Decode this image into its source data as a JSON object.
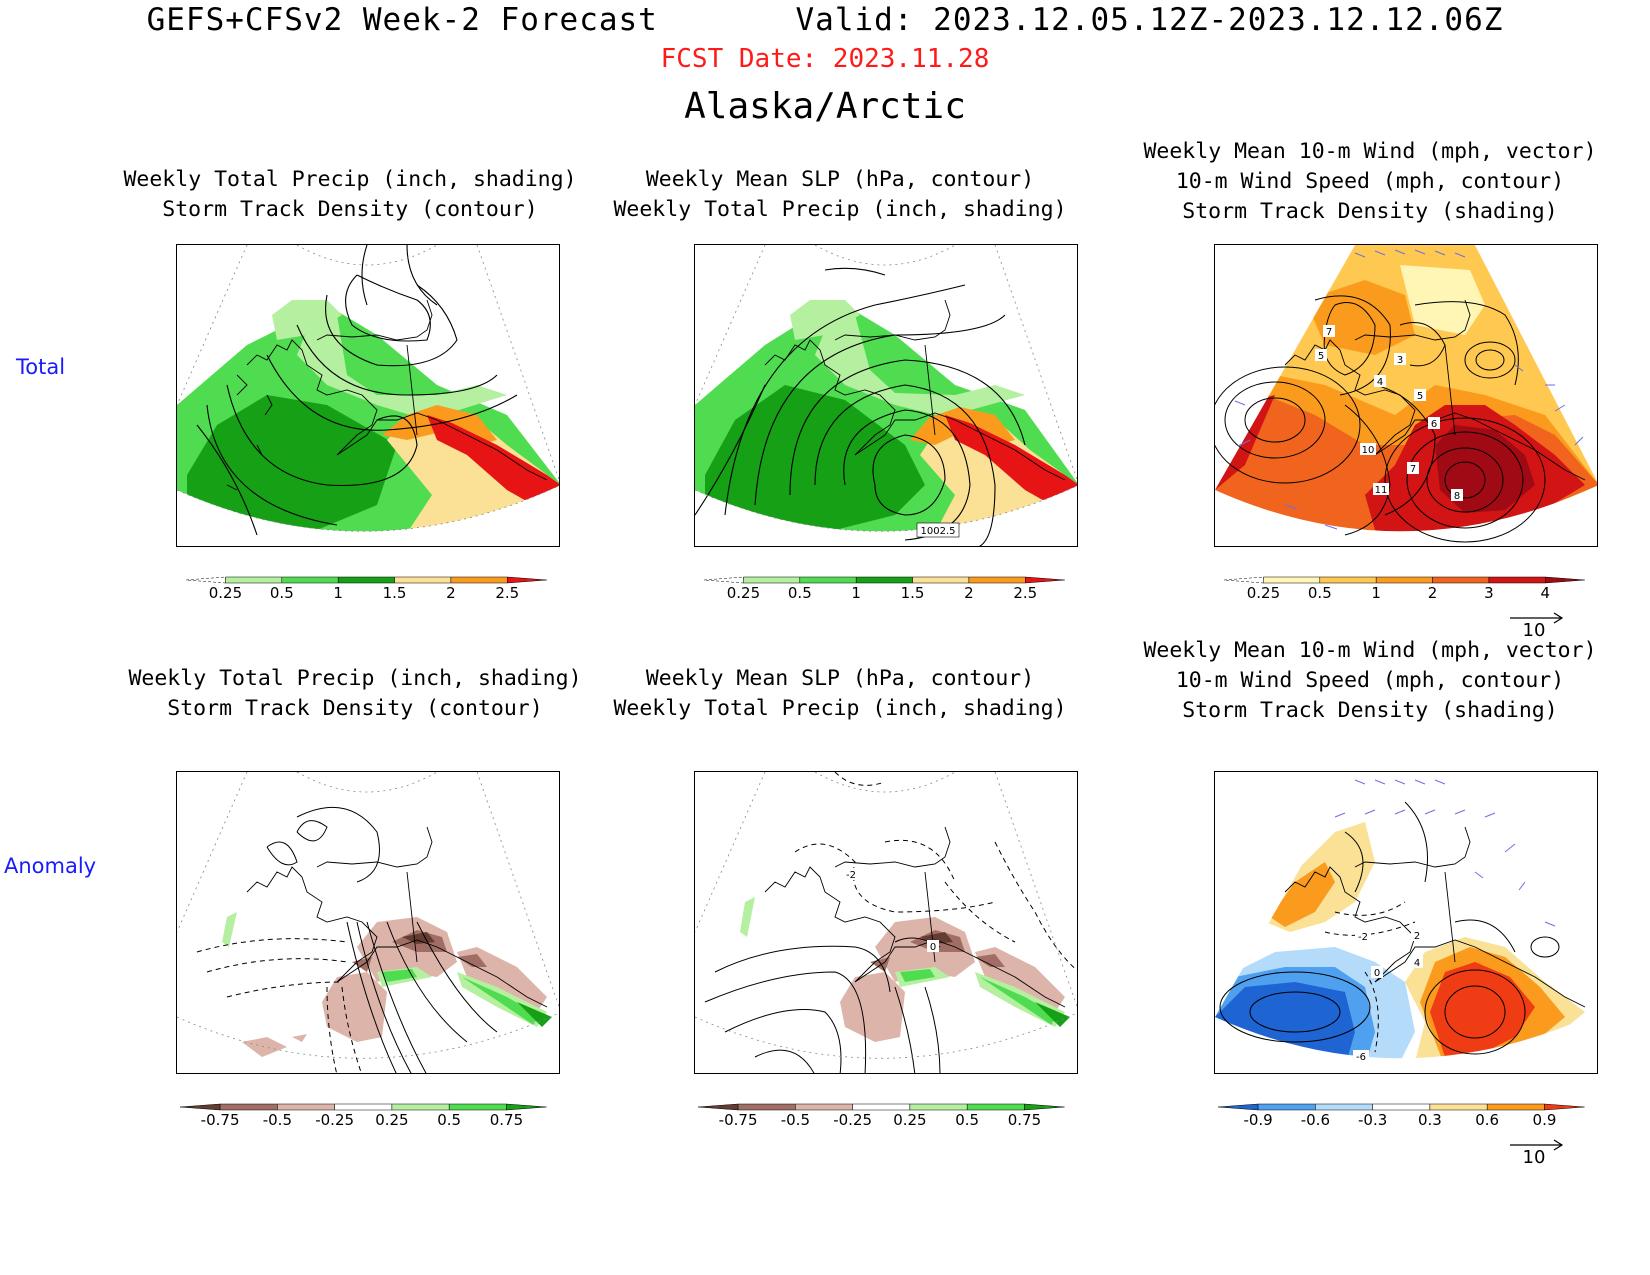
{
  "header": {
    "model": "GEFS+CFSv2 Week-2 Forecast",
    "valid": "Valid: 2023.12.05.12Z-2023.12.12.06Z",
    "fcst_date": "FCST Date: 2023.11.28",
    "region": "Alaska/Arctic"
  },
  "rows": {
    "total": "Total",
    "anomaly": "Anomaly"
  },
  "panels": [
    {
      "id": "total-precip",
      "title1": "Weekly Total Precip (inch, shading)",
      "title2": "Storm Track Density (contour)",
      "title3": ""
    },
    {
      "id": "total-slp",
      "title1": "Weekly Mean SLP (hPa, contour)",
      "title2": "Weekly Total Precip (inch, shading)",
      "title3": "",
      "contour_label": "1002.5"
    },
    {
      "id": "total-wind",
      "title1": "Weekly Mean 10-m Wind (mph, vector)",
      "title2": "10-m Wind Speed (mph, contour)",
      "title3": "Storm Track Density (shading)",
      "contour_labels": [
        "7",
        "5",
        "3",
        "4",
        "5",
        "6",
        "10",
        "7",
        "11",
        "8"
      ]
    },
    {
      "id": "anom-precip",
      "title1": "Weekly Total Precip (inch, shading)",
      "title2": "Storm Track Density (contour)",
      "title3": ""
    },
    {
      "id": "anom-slp",
      "title1": "Weekly Mean SLP (hPa, contour)",
      "title2": "Weekly Total Precip (inch, shading)",
      "title3": "",
      "contour_labels": [
        "-2",
        "0"
      ]
    },
    {
      "id": "anom-wind",
      "title1": "Weekly Mean 10-m Wind (mph, vector)",
      "title2": "10-m Wind Speed (mph, contour)",
      "title3": "Storm Track Density (shading)",
      "contour_labels": [
        "-2",
        "2",
        "0",
        "4",
        "-6"
      ]
    }
  ],
  "colorbars": {
    "precip_total": {
      "ticks": [
        "0.25",
        "0.5",
        "1",
        "1.5",
        "2",
        "2.5"
      ],
      "colors": [
        "#ffffff",
        "#b4f0a0",
        "#50dc50",
        "#16a016",
        "#fae196",
        "#fa9b1e",
        "#e61414"
      ]
    },
    "density_total": {
      "ticks": [
        "0.25",
        "0.5",
        "1",
        "2",
        "3",
        "4"
      ],
      "colors": [
        "#ffffff",
        "#fff5b4",
        "#ffc850",
        "#fa9b1e",
        "#f0641e",
        "#d21414",
        "#a00a14"
      ]
    },
    "precip_anom": {
      "ticks": [
        "-0.75",
        "-0.5",
        "-0.25",
        "0.25",
        "0.5",
        "0.75"
      ],
      "colors": [
        "#643c32",
        "#a06e64",
        "#dcb4aa",
        "#ffffff",
        "#b4f0a0",
        "#50dc50",
        "#16a016"
      ]
    },
    "density_anom": {
      "ticks": [
        "-0.9",
        "-0.6",
        "-0.3",
        "0.3",
        "0.6",
        "0.9"
      ],
      "colors": [
        "#1e64d2",
        "#50a0f0",
        "#b4dcfa",
        "#ffffff",
        "#fae196",
        "#fa9b1e",
        "#f03c14"
      ]
    }
  },
  "vector_ref": "10",
  "colors": {
    "coast": "#000000",
    "vector": "#6e6ee6",
    "fcst": "#ff1a1a",
    "rowlabel": "#1a1aff"
  }
}
